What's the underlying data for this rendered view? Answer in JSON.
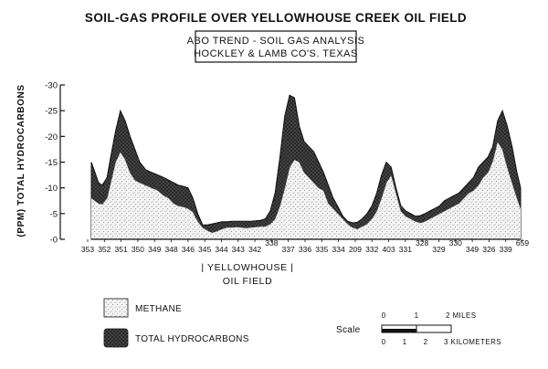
{
  "chart_data": {
    "type": "area",
    "title": "SOIL-GAS PROFILE OVER YELLOWHOUSE CREEK OIL FIELD",
    "subtitle_lines": [
      "ABO TREND - SOIL GAS ANALYSIS",
      "HOCKLEY & LAMB CO'S. TEXAS"
    ],
    "ylabel": "(PPM) TOTAL HYDROCARBONS",
    "yticks": [
      "-30",
      "-25",
      "-20",
      "-15",
      "-10",
      "-5",
      "-0"
    ],
    "ylim": [
      0,
      30
    ],
    "x_station_labels": [
      "353",
      "352",
      "351",
      "350",
      "349",
      "348",
      "346",
      "345",
      "344",
      "343",
      "342",
      "338",
      "337",
      "336",
      "335",
      "334",
      "209",
      "332",
      "403",
      "331",
      "328",
      "329",
      "330",
      "349",
      "326",
      "339",
      "659"
    ],
    "field_label": [
      "| YELLOWHOUSE |",
      "OIL FIELD"
    ],
    "x": [
      0,
      0.3,
      0.6,
      0.9,
      1.3,
      1.6,
      2.0,
      2.4,
      2.8,
      3.2,
      3.6,
      4.0,
      4.5,
      5.0,
      5.5,
      6.0,
      6.4,
      6.8,
      7.2,
      7.6,
      8.0,
      8.4,
      8.8,
      9.2,
      9.6,
      10.0,
      10.4,
      10.8,
      11.2,
      11.6,
      12.0,
      12.4,
      12.8,
      13.2,
      13.6,
      14.0,
      14.4,
      14.8,
      15.2,
      15.6,
      16.0,
      16.4,
      16.8,
      17.2,
      17.6,
      18.0,
      18.4,
      18.8,
      19.2,
      19.6,
      20.0,
      20.4,
      20.8,
      21.2,
      21.6,
      22.0,
      22.4,
      22.8,
      23.2,
      23.6,
      24.0,
      24.4,
      24.8,
      25.2,
      25.6,
      26.0,
      26.4,
      26.8,
      27.2,
      27.6,
      28.0,
      28.4,
      28.8,
      29.2,
      29.6,
      30.0,
      30.4,
      30.8,
      31.2,
      31.6,
      32.0,
      32.4,
      32.8,
      33.2,
      33.6,
      34.0,
      34.4,
      34.8,
      35.2,
      35.5
    ],
    "series": [
      {
        "name": "METHANE",
        "values": [
          8,
          7.5,
          7,
          6.8,
          8,
          11,
          15,
          17,
          15.5,
          13,
          11.5,
          11,
          10.5,
          10,
          9.5,
          8.5,
          8,
          7,
          6.5,
          6.3,
          6,
          5.3,
          3.5,
          2.3,
          1.7,
          1.3,
          1.6,
          2,
          2.3,
          2.3,
          2.4,
          2.3,
          2.2,
          2.3,
          2.4,
          2.5,
          2.5,
          3,
          4,
          6.5,
          10,
          14,
          15.5,
          15,
          13,
          12,
          11,
          10,
          9.5,
          7,
          6,
          5,
          4,
          3,
          2.3,
          2,
          2.5,
          3,
          4,
          5.5,
          8,
          11,
          12.5,
          9,
          5.5,
          4.5,
          4,
          3.5,
          3.2,
          3.5,
          4,
          4.5,
          5,
          5.5,
          6,
          6.5,
          7,
          8,
          9,
          9.5,
          10.5,
          12,
          13,
          15.2,
          19,
          17.5,
          14,
          11,
          8,
          6
        ]
      },
      {
        "name": "TOTAL HYDROCARBONS",
        "values": [
          15,
          13,
          11,
          10.5,
          12,
          16,
          21,
          25,
          23,
          20,
          17.5,
          15,
          13.5,
          13,
          12.5,
          12,
          11.5,
          11,
          10.5,
          10.3,
          10,
          8,
          5,
          2.8,
          2.8,
          3,
          3.2,
          3.4,
          3.4,
          3.5,
          3.5,
          3.5,
          3.5,
          3.5,
          3.6,
          3.7,
          4,
          5.5,
          9,
          16,
          24,
          28,
          27.5,
          22,
          19,
          18,
          17,
          15,
          13,
          10.5,
          8,
          6.3,
          4.5,
          3.5,
          3.2,
          3.3,
          4,
          5,
          6.5,
          9,
          12.5,
          15,
          14,
          10,
          6.5,
          5.5,
          5,
          4.5,
          4.6,
          5,
          5.5,
          6,
          6.5,
          7.5,
          8,
          8.5,
          9,
          10,
          11,
          12,
          14,
          15,
          16,
          18,
          23,
          25,
          22,
          18,
          13,
          10
        ]
      }
    ],
    "legend": [
      {
        "label": "METHANE"
      },
      {
        "label": "TOTAL HYDROCARBONS"
      }
    ],
    "legend_placement": "bottom-left",
    "grid": false,
    "scale": {
      "label": "Scale",
      "miles_ticks": [
        "0",
        "1",
        "2 MILES"
      ],
      "km_ticks": [
        "0",
        "1",
        "2",
        "3 KILOMETERS"
      ]
    }
  }
}
